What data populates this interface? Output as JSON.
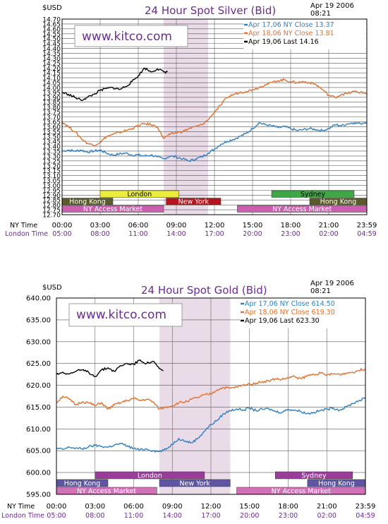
{
  "chart_data": [
    {
      "type": "line",
      "title": "24 Hour Spot Silver (Bid)",
      "currency": "$USD",
      "timestamp_date": "Apr 19 2006",
      "timestamp_time": "08:21",
      "brand": "www.kitco.com",
      "ylim": [
        12.7,
        14.7
      ],
      "y_ticks": [
        "14.70",
        "14.65",
        "14.60",
        "14.55",
        "14.50",
        "14.45",
        "14.40",
        "14.35",
        "14.30",
        "14.25",
        "14.20",
        "14.15",
        "14.10",
        "14.05",
        "14.00",
        "13.95",
        "13.90",
        "13.85",
        "13.80",
        "13.75",
        "13.70",
        "13.65",
        "13.60",
        "13.55",
        "13.50",
        "13.45",
        "13.40",
        "13.35",
        "13.30",
        "13.25",
        "13.20",
        "13.15",
        "13.10",
        "13.05",
        "13.00",
        "12.95",
        "12.90",
        "12.85",
        "12.80",
        "12.75",
        "12.70"
      ],
      "x_ticks_ny": [
        "00:00",
        "03:00",
        "06:00",
        "09:00",
        "12:00",
        "15:00",
        "18:00",
        "21:00",
        "23:59"
      ],
      "x_ticks_london": [
        "05:00",
        "08:00",
        "11:00",
        "14:00",
        "17:00",
        "20:00",
        "23:00",
        "02:00",
        "04:59"
      ],
      "ny_time_label": "NY Time",
      "london_time_label": "London Time",
      "highlight_hours": [
        8.0,
        11.5
      ],
      "legend": [
        {
          "text": "Apr  17,06  NY  Close  13.37",
          "color": "#2f7fc1"
        },
        {
          "text": "Apr  18,06  NY  Close  13.81",
          "color": "#e2712d"
        },
        {
          "text": "Apr  19,06  Last  14.16",
          "color": "#000000"
        }
      ],
      "sessions": [
        {
          "label": "London",
          "start": 3.0,
          "end": 9.2,
          "row": 0,
          "color": "#ecec3c",
          "text_color": "#000000"
        },
        {
          "label": "Sydney",
          "start": 16.5,
          "end": 23.0,
          "row": 0,
          "color": "#3fa845",
          "text_color": "#000000"
        },
        {
          "label": "Hong  Kong",
          "start": 0.0,
          "end": 4.0,
          "row": 1,
          "color": "#5a5a2a",
          "text_color": "#ffffff"
        },
        {
          "label": "New  York",
          "start": 8.2,
          "end": 12.5,
          "row": 1,
          "color": "#b4161b",
          "text_color": "#ffffff"
        },
        {
          "label": "Hong  Kong",
          "start": 19.5,
          "end": 24.0,
          "row": 1,
          "color": "#5a5a2a",
          "text_color": "#ffffff"
        },
        {
          "label": "NY  Access  Market",
          "start": 0.0,
          "end": 8.0,
          "row": 2,
          "color": "#cc5fb0",
          "text_color": "#ffffff"
        },
        {
          "label": "NY  Access  Market",
          "start": 13.8,
          "end": 24.0,
          "row": 2,
          "color": "#cc5fb0",
          "text_color": "#ffffff"
        }
      ],
      "series": [
        {
          "name": "Apr 17,06",
          "color": "#2f7fc1",
          "x": [
            0,
            0.5,
            1,
            1.5,
            2,
            2.5,
            3,
            3.5,
            4,
            4.5,
            5,
            5.5,
            6,
            6.5,
            7,
            7.5,
            8,
            8.5,
            9,
            9.5,
            10,
            10.5,
            11,
            11.5,
            12,
            12.5,
            13,
            13.5,
            14,
            14.5,
            15,
            15.5,
            16,
            16.5,
            17,
            17.5,
            18,
            18.5,
            19,
            19.5,
            20,
            20.5,
            21,
            21.5,
            22,
            22.5,
            23,
            23.5,
            24
          ],
          "y": [
            13.35,
            13.36,
            13.35,
            13.36,
            13.34,
            13.35,
            13.36,
            13.33,
            13.31,
            13.32,
            13.33,
            13.31,
            13.31,
            13.3,
            13.31,
            13.29,
            13.27,
            13.3,
            13.29,
            13.27,
            13.25,
            13.27,
            13.29,
            13.33,
            13.37,
            13.42,
            13.45,
            13.47,
            13.5,
            13.53,
            13.58,
            13.64,
            13.62,
            13.61,
            13.59,
            13.6,
            13.58,
            13.56,
            13.57,
            13.58,
            13.57,
            13.56,
            13.58,
            13.62,
            13.61,
            13.63,
            13.64,
            13.63,
            13.65
          ]
        },
        {
          "name": "Apr 18,06",
          "color": "#e2712d",
          "x": [
            0,
            0.5,
            1,
            1.5,
            2,
            2.5,
            3,
            3.5,
            4,
            4.5,
            5,
            5.5,
            6,
            6.5,
            7,
            7.5,
            8,
            8.5,
            9,
            9.5,
            10,
            10.5,
            11,
            11.5,
            12,
            12.5,
            13,
            13.5,
            14,
            14.5,
            15,
            15.5,
            16,
            16.5,
            17,
            17.5,
            18,
            18.5,
            19,
            19.5,
            20,
            20.5,
            21,
            21.5,
            22,
            22.5,
            23,
            23.5,
            24
          ],
          "y": [
            13.65,
            13.6,
            13.55,
            13.48,
            13.43,
            13.41,
            13.44,
            13.5,
            13.52,
            13.54,
            13.56,
            13.58,
            13.61,
            13.63,
            13.62,
            13.6,
            13.48,
            13.52,
            13.54,
            13.55,
            13.58,
            13.6,
            13.62,
            13.67,
            13.75,
            13.82,
            13.9,
            13.93,
            13.95,
            13.96,
            13.98,
            14.0,
            14.03,
            14.05,
            14.07,
            14.08,
            14.06,
            14.05,
            14.06,
            14.05,
            14.03,
            13.98,
            13.92,
            13.9,
            13.93,
            13.94,
            13.96,
            13.95,
            13.94
          ]
        },
        {
          "name": "Apr 19,06",
          "color": "#000000",
          "x": [
            0,
            0.5,
            1,
            1.5,
            2,
            2.5,
            3,
            3.5,
            4,
            4.5,
            5,
            5.5,
            6,
            6.5,
            7,
            7.5,
            8,
            8.3
          ],
          "y": [
            13.95,
            13.93,
            13.9,
            13.87,
            13.9,
            13.93,
            13.97,
            13.99,
            14.0,
            13.98,
            14.01,
            14.06,
            14.12,
            14.2,
            14.16,
            14.19,
            14.16,
            14.16
          ]
        }
      ]
    },
    {
      "type": "line",
      "title": "24 Hour Spot Gold (Bid)",
      "currency": "$USD",
      "timestamp_date": "Apr 19 2006",
      "timestamp_time": "08:21",
      "brand": "www.kitco.com",
      "ylim": [
        595.0,
        640.0
      ],
      "y_ticks": [
        "640.00",
        "635.00",
        "630.00",
        "625.00",
        "620.00",
        "615.00",
        "610.00",
        "605.00",
        "600.00",
        "595.00"
      ],
      "x_ticks_ny": [
        "00:00",
        "03:00",
        "06:00",
        "09:00",
        "12:00",
        "15:00",
        "18:00",
        "21:00",
        "23:59"
      ],
      "x_ticks_london": [
        "05:00",
        "08:00",
        "11:00",
        "14:00",
        "17:00",
        "20:00",
        "23:00",
        "02:00",
        "04:59"
      ],
      "ny_time_label": "NY Time",
      "london_time_label": "London Time",
      "highlight_hours": [
        8.0,
        13.5
      ],
      "legend": [
        {
          "text": "Apr  17,06  NY  Close  614.50",
          "color": "#2f7fc1"
        },
        {
          "text": "Apr  18,06  NY  Close  619.30",
          "color": "#e2712d"
        },
        {
          "text": "Apr  19,06  Last  623.30",
          "color": "#000000"
        }
      ],
      "sessions": [
        {
          "label": "London",
          "start": 3.0,
          "end": 11.5,
          "row": 0,
          "color": "#9a3c9a",
          "text_color": "#ffffff"
        },
        {
          "label": "Sydney",
          "start": 17.0,
          "end": 23.0,
          "row": 0,
          "color": "#9a3c9a",
          "text_color": "#ffffff"
        },
        {
          "label": "Hong  Kong",
          "start": 0.0,
          "end": 4.0,
          "row": 1,
          "color": "#5e55a5",
          "text_color": "#ffffff"
        },
        {
          "label": "New  York",
          "start": 8.0,
          "end": 13.5,
          "row": 1,
          "color": "#5e55a5",
          "text_color": "#ffffff"
        },
        {
          "label": "Hong  Kong",
          "start": 19.5,
          "end": 24.0,
          "row": 1,
          "color": "#5e55a5",
          "text_color": "#ffffff"
        },
        {
          "label": "NY  Access  Market",
          "start": 0.0,
          "end": 7.8,
          "row": 2,
          "color": "#d271b8",
          "text_color": "#ffffff"
        },
        {
          "label": "NY  Access  Market",
          "start": 14.0,
          "end": 24.0,
          "row": 2,
          "color": "#d271b8",
          "text_color": "#ffffff"
        }
      ],
      "series": [
        {
          "name": "Apr 17,06",
          "color": "#2f7fc1",
          "x": [
            0,
            0.5,
            1,
            1.5,
            2,
            2.5,
            3,
            3.5,
            4,
            4.5,
            5,
            5.5,
            6,
            6.5,
            7,
            7.5,
            8,
            8.5,
            9,
            9.5,
            10,
            10.5,
            11,
            11.5,
            12,
            12.5,
            13,
            13.5,
            14,
            14.5,
            15,
            15.5,
            16,
            16.5,
            17,
            17.5,
            18,
            18.5,
            19,
            19.5,
            20,
            20.5,
            21,
            21.5,
            22,
            22.5,
            23,
            23.5,
            24
          ],
          "y": [
            605.5,
            605.3,
            605.8,
            605.6,
            605.4,
            605.9,
            606.2,
            606.0,
            605.8,
            606.3,
            606.6,
            606.1,
            605.5,
            605.2,
            605.4,
            605.0,
            604.8,
            605.3,
            606.5,
            607.8,
            607.2,
            606.8,
            607.9,
            609.5,
            611.0,
            612.0,
            613.5,
            614.2,
            614.6,
            614.3,
            614.8,
            614.2,
            614.5,
            614.6,
            614.0,
            613.8,
            614.5,
            614.3,
            614.0,
            613.5,
            613.8,
            614.2,
            614.5,
            614.8,
            614.3,
            615.0,
            615.8,
            616.5,
            617.0
          ]
        },
        {
          "name": "Apr 18,06",
          "color": "#e2712d",
          "x": [
            0,
            0.5,
            1,
            1.5,
            2,
            2.5,
            3,
            3.5,
            4,
            4.5,
            5,
            5.5,
            6,
            6.5,
            7,
            7.5,
            8,
            8.5,
            9,
            9.5,
            10,
            10.5,
            11,
            11.5,
            12,
            12.5,
            13,
            13.5,
            14,
            14.5,
            15,
            15.5,
            16,
            16.5,
            17,
            17.5,
            18,
            18.5,
            19,
            19.5,
            20,
            20.5,
            21,
            21.5,
            22,
            22.5,
            23,
            23.5,
            24
          ],
          "y": [
            616.0,
            617.5,
            616.8,
            615.5,
            616.2,
            616.0,
            615.3,
            616.0,
            614.5,
            615.5,
            616.0,
            616.5,
            617.0,
            616.5,
            616.8,
            616.2,
            614.5,
            615.0,
            615.3,
            616.0,
            616.2,
            616.8,
            617.2,
            617.8,
            618.0,
            619.0,
            619.5,
            619.3,
            619.6,
            620.0,
            620.3,
            620.5,
            620.8,
            621.0,
            621.5,
            621.3,
            621.7,
            622.0,
            621.5,
            622.2,
            622.5,
            622.8,
            622.3,
            622.6,
            622.5,
            622.8,
            623.0,
            623.4,
            623.8
          ]
        },
        {
          "name": "Apr 19,06",
          "color": "#000000",
          "x": [
            0,
            0.5,
            1,
            1.5,
            2,
            2.5,
            3,
            3.5,
            4,
            4.5,
            5,
            5.5,
            6,
            6.5,
            7,
            7.5,
            8,
            8.3
          ],
          "y": [
            622.5,
            623.0,
            622.6,
            623.2,
            623.5,
            623.0,
            622.0,
            623.5,
            624.0,
            623.2,
            624.5,
            625.0,
            624.8,
            625.8,
            625.0,
            625.5,
            623.8,
            623.3
          ]
        }
      ]
    }
  ]
}
